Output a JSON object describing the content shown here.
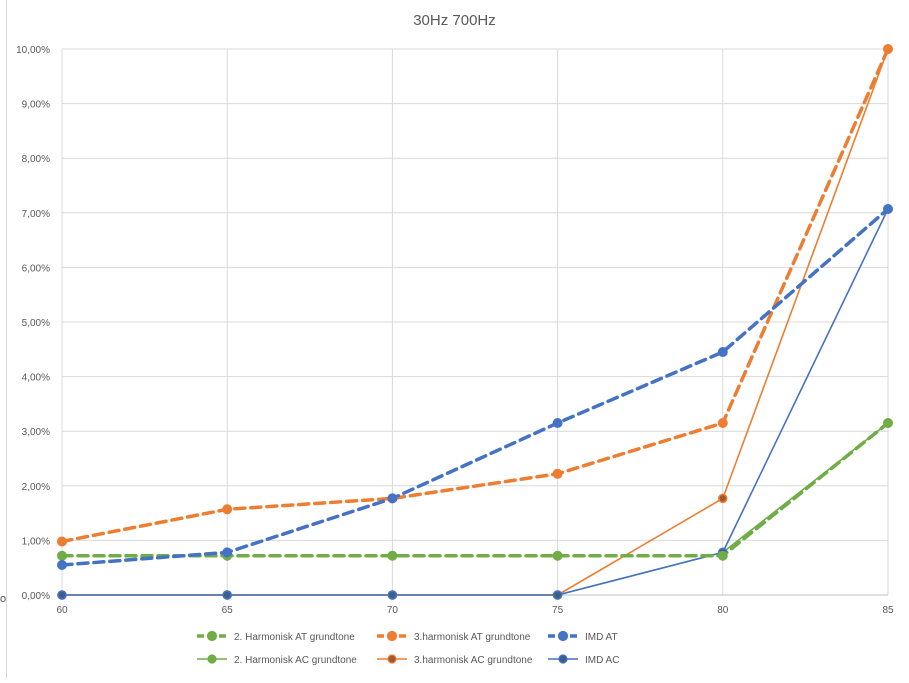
{
  "chart_data": {
    "type": "line",
    "title": "30Hz 700Hz",
    "x": [
      60,
      65,
      70,
      75,
      80,
      85
    ],
    "x_tick_labels": [
      "60",
      "65",
      "70",
      "75",
      "80",
      "85"
    ],
    "ylim": [
      0,
      0.1
    ],
    "y_tick_values": [
      0,
      0.01,
      0.02,
      0.03,
      0.04,
      0.05,
      0.06,
      0.07,
      0.08,
      0.09,
      0.1
    ],
    "y_tick_labels": [
      "0,00%",
      "1,00%",
      "2,00%",
      "3,00%",
      "4,00%",
      "5,00%",
      "6,00%",
      "7,00%",
      "8,00%",
      "9,00%",
      "10,00%"
    ],
    "grid": true,
    "legend_position": "bottom",
    "series": [
      {
        "name": "2. Harmonisk AT grundtone",
        "values": [
          0.0072,
          0.0072,
          0.0072,
          0.0072,
          0.0072,
          0.0315
        ],
        "color": "#70ad47",
        "style": "dashed"
      },
      {
        "name": "3.harmonisk AT grundtone",
        "values": [
          0.0098,
          0.0157,
          0.0177,
          0.0222,
          0.0315,
          0.1
        ],
        "color": "#ed7d31",
        "style": "dashed"
      },
      {
        "name": "IMD AT",
        "values": [
          0.0055,
          0.0078,
          0.0177,
          0.0315,
          0.0445,
          0.0707
        ],
        "color": "#4472c4",
        "style": "dashed"
      },
      {
        "name": "2. Harmonisk AC grundtone",
        "values": [
          0,
          0,
          0,
          0,
          0.0078,
          0.0315
        ],
        "color": "#70ad47",
        "style": "solid"
      },
      {
        "name": "3.harmonisk AC grundtone",
        "values": [
          0,
          0,
          0,
          0,
          0.0177,
          0.1
        ],
        "color": "#ed7d31",
        "style": "solid"
      },
      {
        "name": "IMD AC",
        "values": [
          0,
          0,
          0,
          0,
          0.0078,
          0.0707
        ],
        "color": "#4472c4",
        "style": "solid"
      }
    ]
  },
  "side_fragment": "o"
}
